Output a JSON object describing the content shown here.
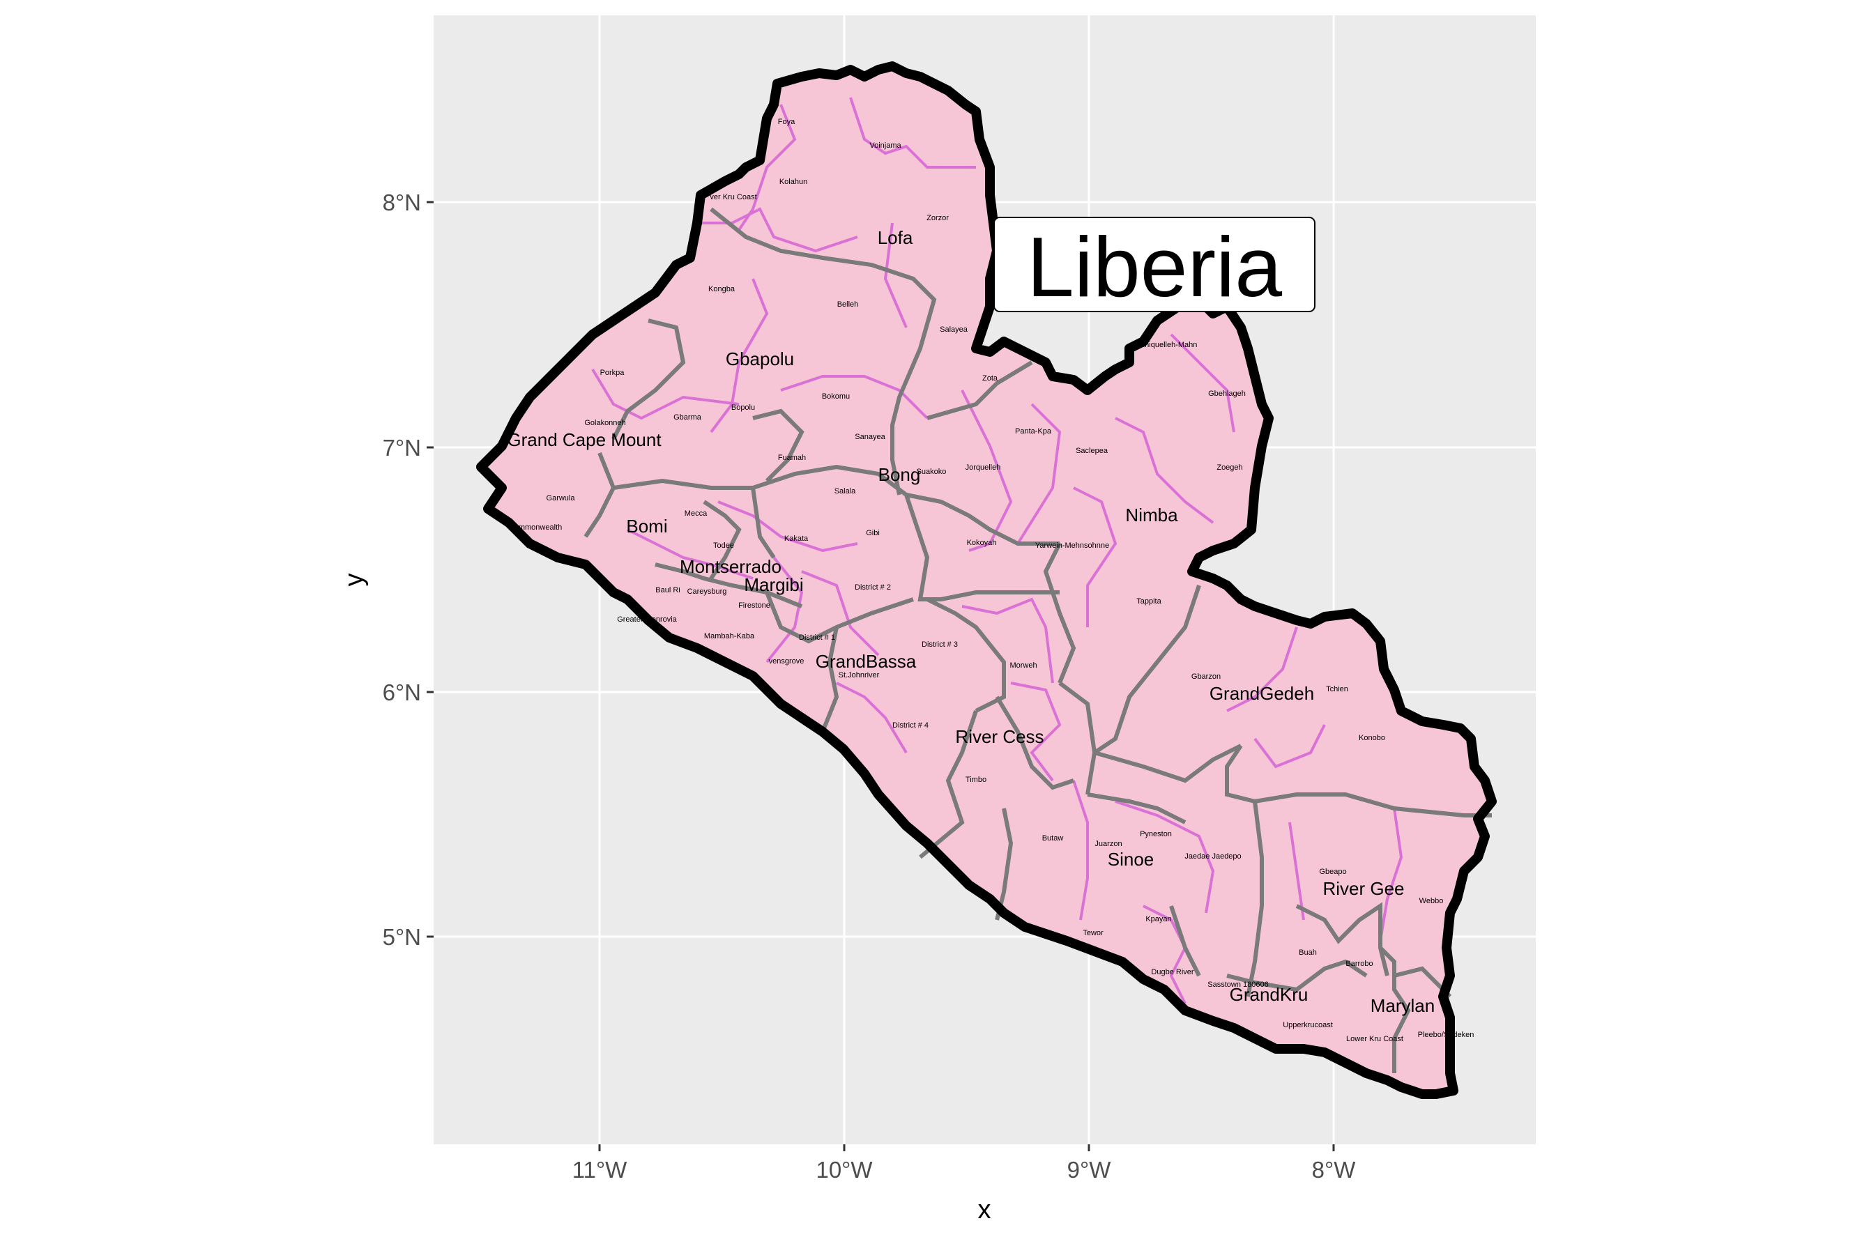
{
  "map": {
    "title": "Liberia",
    "xlabel": "x",
    "ylabel": "y",
    "x_ticks": [
      "11°W",
      "10°W",
      "9°W",
      "8°W"
    ],
    "y_ticks": [
      "8°N",
      "7°N",
      "6°N",
      "5°N"
    ],
    "counties": [
      "Lofa",
      "Gbapolu",
      "Grand Cape Mount",
      "Bomi",
      "Bong",
      "Nimba",
      "Montserrado",
      "Margibi",
      "GrandBassa",
      "River Cess",
      "GrandGedeh",
      "Sinoe",
      "River Gee",
      "GrandKru",
      "Marylan"
    ],
    "districts": [
      "Foya",
      "Voinjama",
      "Kolahun",
      "Zorzor",
      "ver Kru Coast",
      "Kongba",
      "Belleh",
      "Salayea",
      "Porkpa",
      "Bopolu",
      "Bokomu",
      "Zota",
      "Golakonneh",
      "Gbarma",
      "Sanayea",
      "Panta-Kpa",
      "Fuamah",
      "Jorquelleh",
      "Suakoko",
      "Saclepea",
      "Salala",
      "Garwula",
      "Mecca",
      "Todee",
      "Kakata",
      "Gibi",
      "Kokoyah",
      "Yarwein-Mehnsohnne",
      "Careysburg",
      "Baul Ri",
      "Firestone",
      "District # 2",
      "Tappita",
      "Sanniquelleh-Mahn",
      "Gbehlageh",
      "Zoegeh",
      "Commonwealth",
      "Greater Monrovia",
      "Mambah-Kaba",
      "District # 1",
      "District # 3",
      "vensgrove",
      "St.Johnriver",
      "Morweh",
      "Gbarzon",
      "Tchien",
      "Konobo",
      "District # 4",
      "Timbo",
      "Butaw",
      "Juarzon",
      "Pyneston",
      "Jaedae Jaedepo",
      "Gbeapo",
      "Webbo",
      "Kpayan",
      "Buah",
      "Barrobo",
      "Dugbe River",
      "Sasstown 180606",
      "Upperkrucoast",
      "Lower Kru Coast",
      "Pleebo/Sodeken",
      "Tewor"
    ],
    "colors": {
      "panel": "#ebebeb",
      "grid": "#ffffff",
      "fill": "#f7c6d6",
      "district_border": "#da72d6",
      "county_border": "#7a7a7a",
      "country_border": "#000000"
    }
  }
}
